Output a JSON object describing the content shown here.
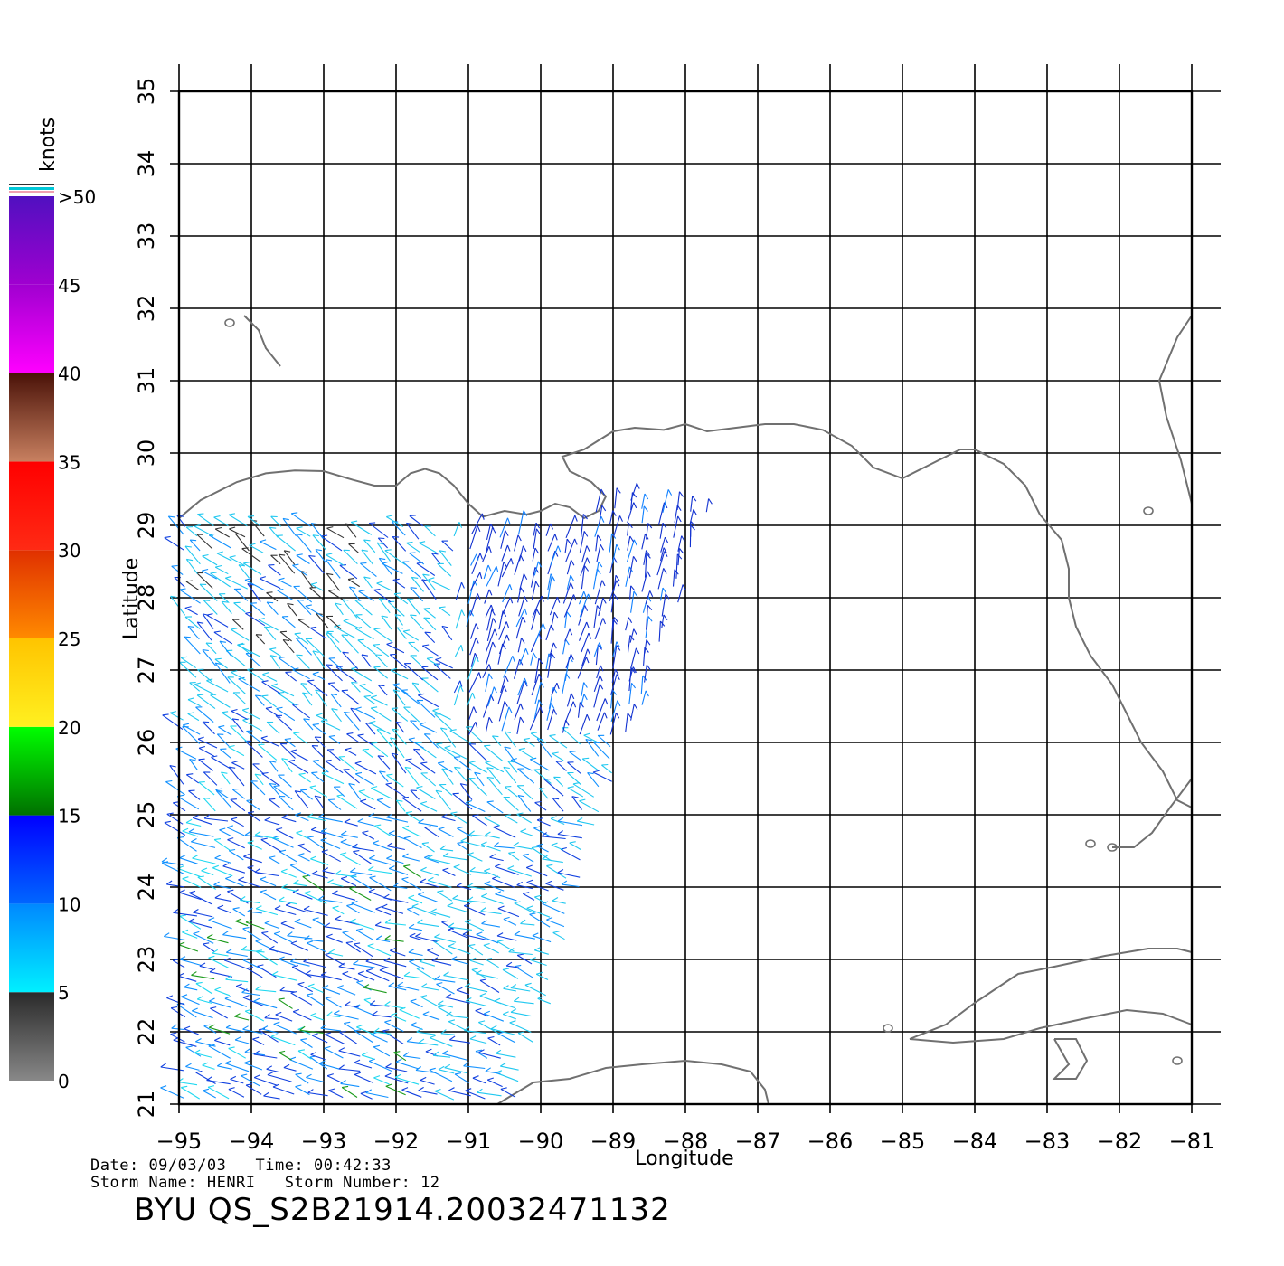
{
  "colorbar": {
    "units": "knots",
    "labels": [
      {
        "value": 0,
        "text": "0"
      },
      {
        "value": 5,
        "text": "5"
      },
      {
        "value": 10,
        "text": "10"
      },
      {
        "value": 15,
        "text": "15"
      },
      {
        "value": 20,
        "text": "20"
      },
      {
        "value": 25,
        "text": "25"
      },
      {
        "value": 30,
        "text": "30"
      },
      {
        "value": 35,
        "text": "35"
      },
      {
        "value": 40,
        "text": "40"
      },
      {
        "value": 45,
        "text": "45"
      },
      {
        "value": 50,
        "text": ">50"
      }
    ],
    "bands": [
      {
        "from": 0,
        "to": 5,
        "top": "#2a2a2a",
        "bottom": "#888888"
      },
      {
        "from": 5,
        "to": 10,
        "top": "#0088ff",
        "bottom": "#00f0ff"
      },
      {
        "from": 10,
        "to": 15,
        "top": "#0000ff",
        "bottom": "#0066ff"
      },
      {
        "from": 15,
        "to": 20,
        "top": "#00ff00",
        "bottom": "#007000"
      },
      {
        "from": 20,
        "to": 25,
        "top": "#ffc400",
        "bottom": "#fff020"
      },
      {
        "from": 25,
        "to": 30,
        "top": "#e03000",
        "bottom": "#ff8a00"
      },
      {
        "from": 30,
        "to": 35,
        "top": "#ff0000",
        "bottom": "#ff2a14"
      },
      {
        "from": 35,
        "to": 40,
        "top": "#4a1208",
        "bottom": "#c88060"
      },
      {
        "from": 40,
        "to": 45,
        "top": "#a000d0",
        "bottom": "#ff00ff"
      },
      {
        "from": 45,
        "to": 50,
        "top": "#5010c0",
        "bottom": "#a000d0"
      }
    ]
  },
  "map": {
    "x_axis_label": "Longitude",
    "y_axis_label": "Latitude",
    "lon_range": [
      -95,
      -81
    ],
    "lat_range": [
      21,
      35
    ],
    "lon_ticks": [
      -95,
      -94,
      -93,
      -92,
      -91,
      -90,
      -89,
      -88,
      -87,
      -86,
      -85,
      -84,
      -83,
      -82,
      -81
    ],
    "lon_tick_labels": [
      "−95",
      "−94",
      "−93",
      "−92",
      "−91",
      "−90",
      "−89",
      "−88",
      "−87",
      "−86",
      "−85",
      "−84",
      "−83",
      "−82",
      "−81"
    ],
    "lat_ticks": [
      21,
      22,
      23,
      24,
      25,
      26,
      27,
      28,
      29,
      30,
      31,
      32,
      33,
      34,
      35
    ],
    "lat_tick_labels": [
      "21",
      "22",
      "23",
      "24",
      "25",
      "26",
      "27",
      "28",
      "29",
      "30",
      "31",
      "32",
      "33",
      "34",
      "35"
    ],
    "grid": true,
    "coastline_color": "#707070",
    "coastlines": [
      [
        [
          -95,
          29.1
        ],
        [
          -94.7,
          29.35
        ],
        [
          -94.2,
          29.6
        ],
        [
          -93.8,
          29.72
        ],
        [
          -93.4,
          29.76
        ],
        [
          -93.0,
          29.75
        ],
        [
          -92.6,
          29.63
        ],
        [
          -92.3,
          29.55
        ],
        [
          -92.0,
          29.55
        ],
        [
          -91.8,
          29.72
        ],
        [
          -91.6,
          29.78
        ],
        [
          -91.4,
          29.72
        ],
        [
          -91.2,
          29.55
        ],
        [
          -91.0,
          29.3
        ],
        [
          -90.8,
          29.12
        ],
        [
          -90.5,
          29.2
        ],
        [
          -90.2,
          29.15
        ],
        [
          -90.0,
          29.2
        ],
        [
          -89.8,
          29.3
        ],
        [
          -89.6,
          29.25
        ],
        [
          -89.4,
          29.1
        ],
        [
          -89.2,
          29.2
        ],
        [
          -89.1,
          29.4
        ],
        [
          -89.3,
          29.6
        ],
        [
          -89.6,
          29.75
        ],
        [
          -89.7,
          29.95
        ],
        [
          -89.4,
          30.05
        ],
        [
          -89.0,
          30.3
        ],
        [
          -88.7,
          30.35
        ],
        [
          -88.3,
          30.32
        ],
        [
          -88.0,
          30.4
        ],
        [
          -87.7,
          30.3
        ],
        [
          -87.3,
          30.35
        ],
        [
          -86.9,
          30.4
        ],
        [
          -86.5,
          30.4
        ],
        [
          -86.1,
          30.32
        ],
        [
          -85.7,
          30.1
        ],
        [
          -85.4,
          29.8
        ],
        [
          -85.0,
          29.65
        ],
        [
          -84.6,
          29.85
        ],
        [
          -84.2,
          30.05
        ],
        [
          -84.0,
          30.05
        ],
        [
          -83.6,
          29.85
        ],
        [
          -83.3,
          29.55
        ],
        [
          -83.1,
          29.15
        ],
        [
          -82.8,
          28.8
        ],
        [
          -82.7,
          28.4
        ],
        [
          -82.7,
          28.0
        ],
        [
          -82.6,
          27.6
        ],
        [
          -82.4,
          27.2
        ],
        [
          -82.1,
          26.8
        ],
        [
          -81.9,
          26.4
        ],
        [
          -81.7,
          26.0
        ],
        [
          -81.4,
          25.6
        ],
        [
          -81.2,
          25.2
        ],
        [
          -81.0,
          25.1
        ]
      ],
      [
        [
          -81.0,
          29.3
        ],
        [
          -81.15,
          29.9
        ],
        [
          -81.35,
          30.5
        ],
        [
          -81.45,
          31.0
        ],
        [
          -81.2,
          31.6
        ],
        [
          -81.0,
          31.9
        ]
      ],
      [
        [
          -94.1,
          31.9
        ],
        [
          -93.9,
          31.7
        ],
        [
          -93.8,
          31.45
        ],
        [
          -93.6,
          31.2
        ]
      ],
      [
        [
          -81.0,
          25.5
        ],
        [
          -81.3,
          25.1
        ],
        [
          -81.55,
          24.75
        ],
        [
          -81.8,
          24.55
        ],
        [
          -82.1,
          24.55
        ]
      ],
      [
        [
          -95,
          21.9
        ],
        [
          -95,
          21.85
        ]
      ],
      [
        [
          -90.6,
          21.0
        ],
        [
          -90.1,
          21.3
        ],
        [
          -89.6,
          21.35
        ],
        [
          -89.1,
          21.5
        ],
        [
          -88.6,
          21.55
        ],
        [
          -88.0,
          21.6
        ],
        [
          -87.5,
          21.55
        ],
        [
          -87.1,
          21.45
        ],
        [
          -86.9,
          21.2
        ],
        [
          -86.85,
          21.0
        ]
      ],
      [
        [
          -84.9,
          21.9
        ],
        [
          -84.4,
          22.1
        ],
        [
          -84.0,
          22.4
        ],
        [
          -83.4,
          22.8
        ],
        [
          -82.9,
          22.9
        ],
        [
          -82.2,
          23.05
        ],
        [
          -81.6,
          23.15
        ],
        [
          -81.2,
          23.15
        ],
        [
          -81.0,
          23.1
        ]
      ],
      [
        [
          -84.9,
          21.9
        ],
        [
          -84.3,
          21.85
        ],
        [
          -83.6,
          21.9
        ],
        [
          -83.1,
          22.05
        ],
        [
          -82.4,
          22.2
        ],
        [
          -81.9,
          22.3
        ],
        [
          -81.4,
          22.25
        ],
        [
          -81.0,
          22.1
        ]
      ],
      [
        [
          -82.9,
          21.9
        ],
        [
          -82.7,
          21.55
        ],
        [
          -82.9,
          21.35
        ],
        [
          -82.6,
          21.35
        ],
        [
          -82.45,
          21.6
        ],
        [
          -82.6,
          21.9
        ],
        [
          -82.9,
          21.9
        ]
      ]
    ]
  },
  "footer": {
    "date_label": "Date:",
    "date": "09/03/03",
    "time_label": "Time:",
    "time": "00:42:33",
    "storm_name_label": "Storm  Name:",
    "storm_name": "HENRI",
    "storm_number_label": "Storm  Number:",
    "storm_number": "12",
    "title": "BYU  QS_S2B21914.20032471132"
  }
}
